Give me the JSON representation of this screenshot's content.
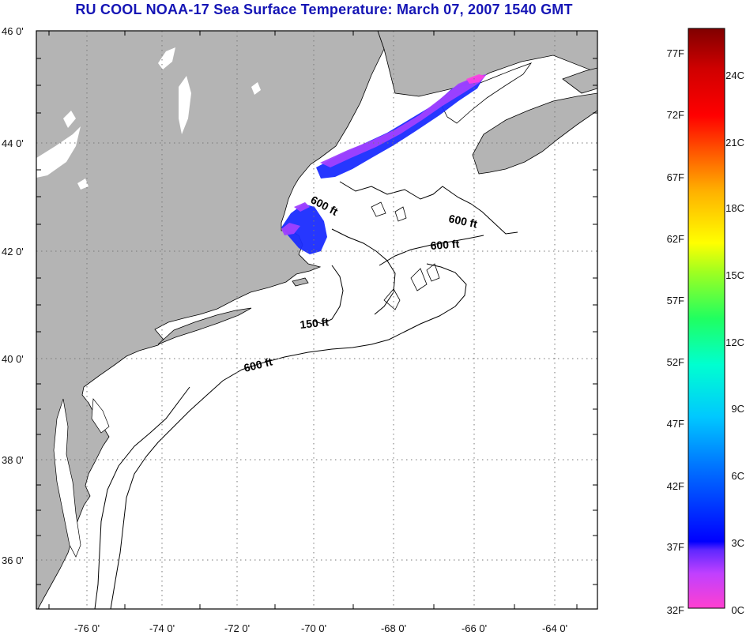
{
  "title": "RU COOL  NOAA-17  Sea Surface Temperature:  March 07, 2007 1540 GMT",
  "map": {
    "lat_ticks": [
      {
        "value": 46,
        "label": "46 0'"
      },
      {
        "value": 44,
        "label": "44 0'"
      },
      {
        "value": 42,
        "label": "42 0'"
      },
      {
        "value": 40,
        "label": "40 0'"
      },
      {
        "value": 38,
        "label": "38 0'"
      },
      {
        "value": 36,
        "label": "36 0'"
      }
    ],
    "lon_ticks": [
      {
        "value": -76,
        "label": "-76 0'"
      },
      {
        "value": -74,
        "label": "-74 0'"
      },
      {
        "value": -72,
        "label": "-72 0'"
      },
      {
        "value": -70,
        "label": "-70 0'"
      },
      {
        "value": -68,
        "label": "-68 0'"
      },
      {
        "value": -66,
        "label": "-66 0'"
      },
      {
        "value": -64,
        "label": "-64 0'"
      }
    ],
    "contour_labels": [
      "600 ft",
      "600 ft",
      "600 ft",
      "150 ft",
      "600 ft"
    ],
    "colors": {
      "land": "#b4b4b4",
      "ocean": "#ffffff",
      "coast": "#000000",
      "sst_warm": "#1a2cff",
      "sst_cold": "#a040ff",
      "sst_coldest": "#ff40e0"
    }
  },
  "colorbar": {
    "fahrenheit_labels": [
      "77F",
      "72F",
      "67F",
      "62F",
      "57F",
      "52F",
      "47F",
      "42F",
      "37F",
      "32F"
    ],
    "celsius_labels": [
      "24C",
      "21C",
      "18C",
      "15C",
      "12C",
      "9C",
      "6C",
      "3C",
      "0C"
    ],
    "range_c": [
      0,
      26
    ],
    "colors": [
      "#ff40d0",
      "#c040ff",
      "#6028ff",
      "#0000ff",
      "#0070ff",
      "#00c8ff",
      "#00ffd0",
      "#20ff60",
      "#a0ff20",
      "#ffff00",
      "#ffb000",
      "#ff6000",
      "#ff0000",
      "#d00000",
      "#800000"
    ]
  }
}
